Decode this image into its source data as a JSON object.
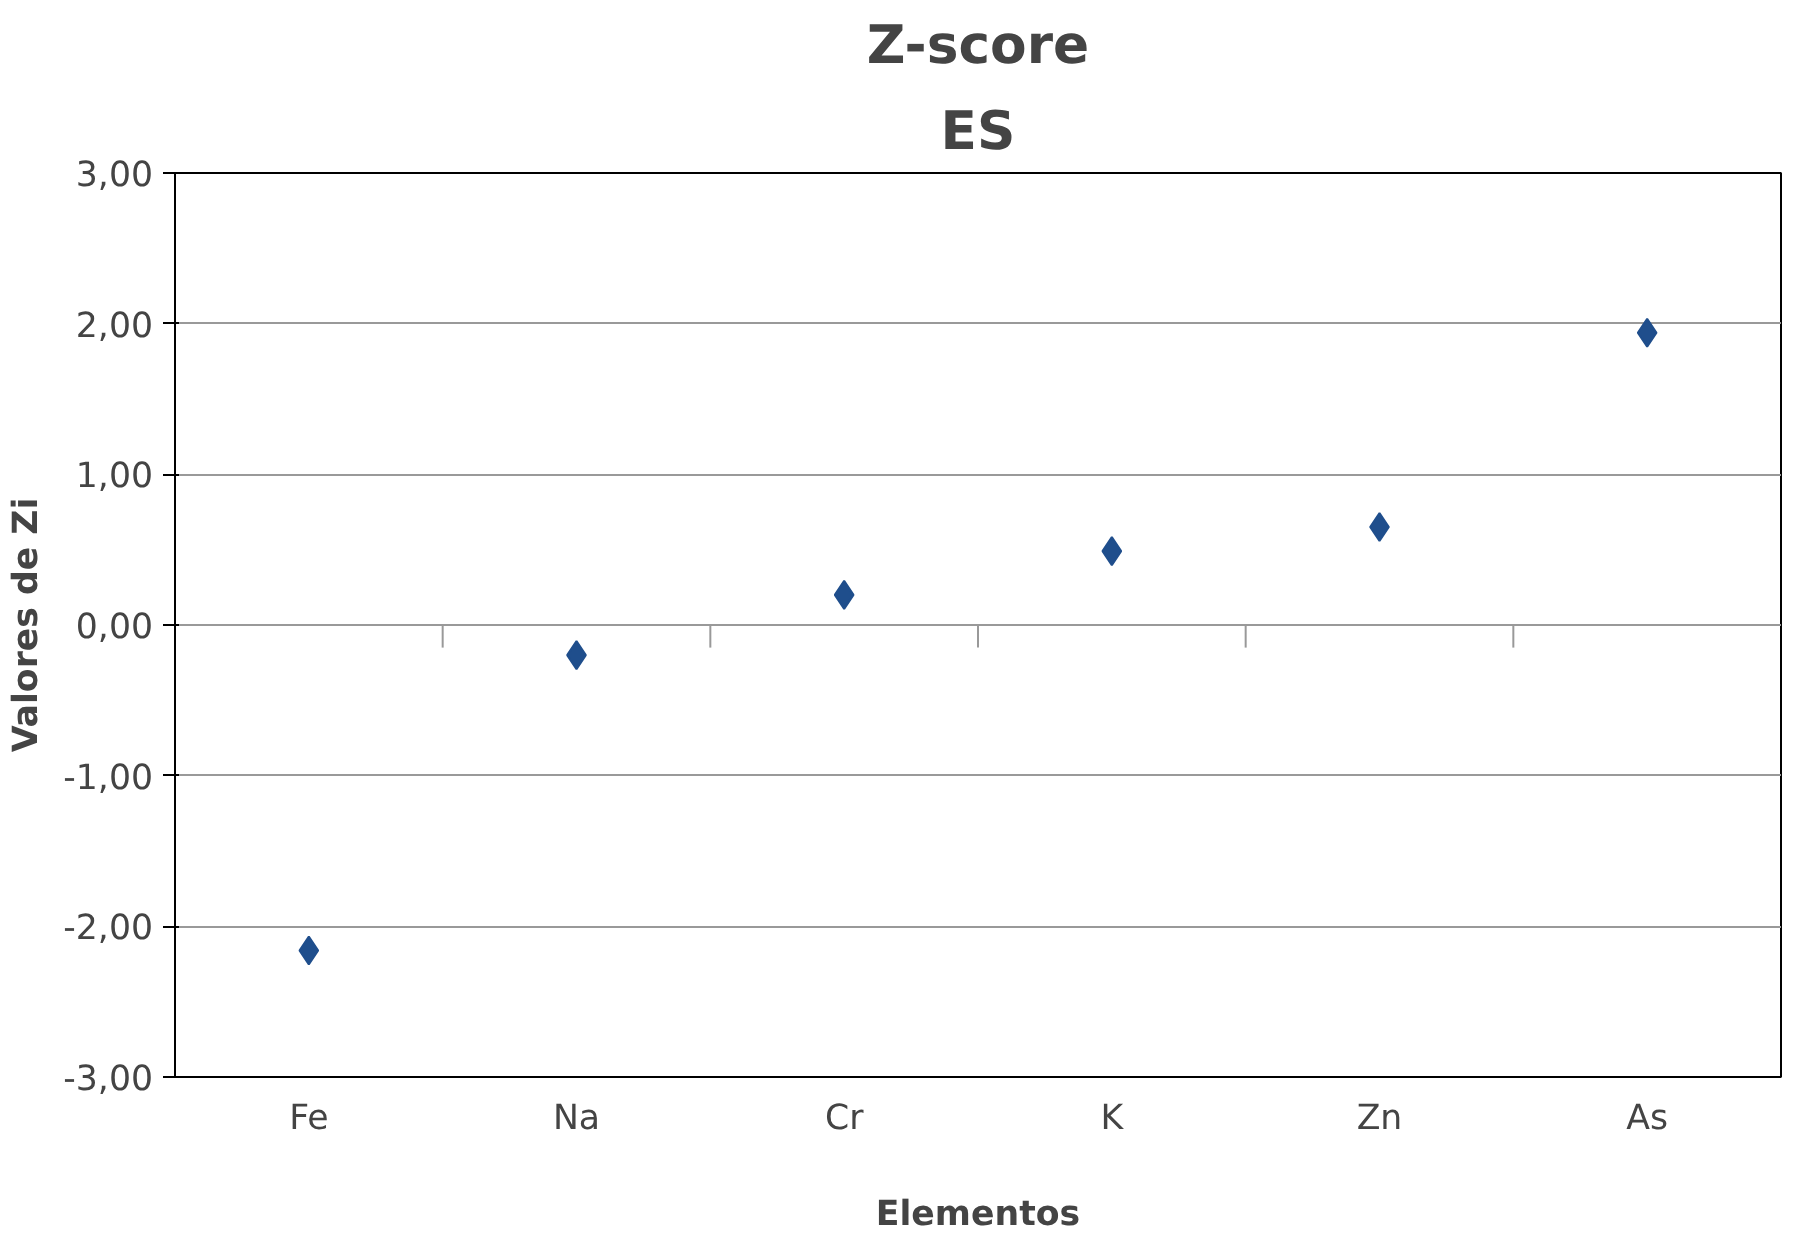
{
  "chart_data": {
    "type": "scatter",
    "title": "Z-score",
    "subtitle": "ES",
    "xlabel": "Elementos",
    "ylabel": "Valores de Zi",
    "categories": [
      "Fe",
      "Na",
      "Cr",
      "K",
      "Zn",
      "As"
    ],
    "series": [
      {
        "color": "#1f4e8c",
        "values": [
          -2.16,
          -0.2,
          0.2,
          0.49,
          0.65,
          1.94
        ]
      }
    ],
    "ylim": [
      -3,
      3
    ],
    "yticks": [
      {
        "value": -3,
        "label": "-3,00"
      },
      {
        "value": -2,
        "label": "-2,00"
      },
      {
        "value": -1,
        "label": "-1,00"
      },
      {
        "value": 0,
        "label": "0,00"
      },
      {
        "value": 1,
        "label": "1,00"
      },
      {
        "value": 2,
        "label": "2,00"
      },
      {
        "value": 3,
        "label": "3,00"
      }
    ],
    "grid": "y",
    "marker": "diamond"
  }
}
